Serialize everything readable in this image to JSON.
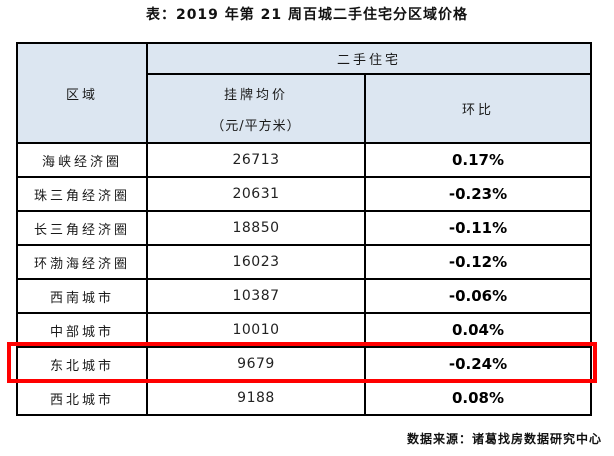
{
  "title": "表：2019 年第 21 周百城二手住宅分区域价格",
  "table": {
    "header": {
      "region": "区域",
      "group": "二手住宅",
      "price_line1": "挂牌均价",
      "price_line2": "（元/平方米）",
      "mom": "环比"
    },
    "rows": [
      {
        "region": "海峡经济圈",
        "price": "26713",
        "mom": "0.17%"
      },
      {
        "region": "珠三角经济圈",
        "price": "20631",
        "mom": "-0.23%"
      },
      {
        "region": "长三角经济圈",
        "price": "18850",
        "mom": "-0.11%"
      },
      {
        "region": "环渤海经济圈",
        "price": "16023",
        "mom": "-0.12%"
      },
      {
        "region": "西南城市",
        "price": "10387",
        "mom": "-0.06%"
      },
      {
        "region": "中部城市",
        "price": "10010",
        "mom": "0.04%"
      },
      {
        "region": "东北城市",
        "price": "9679",
        "mom": "-0.24%"
      },
      {
        "region": "西北城市",
        "price": "9188",
        "mom": "0.08%"
      }
    ],
    "highlighted_row_index": 6
  },
  "source": "数据来源：诸葛找房数据研究中心",
  "colors": {
    "header_bg": "#dce6f1",
    "grid_border": "#000000",
    "highlight_red": "#ff0000",
    "page_bg": "#ffffff"
  },
  "chart_data": {
    "type": "table",
    "title": "表：2019 年第 21 周百城二手住宅分区域价格",
    "group_header": "二手住宅",
    "columns": [
      "区域",
      "挂牌均价（元/平方米）",
      "环比"
    ],
    "rows": [
      [
        "海峡经济圈",
        26713,
        "0.17%"
      ],
      [
        "珠三角经济圈",
        20631,
        "-0.23%"
      ],
      [
        "长三角经济圈",
        18850,
        "-0.11%"
      ],
      [
        "环渤海经济圈",
        16023,
        "-0.12%"
      ],
      [
        "西南城市",
        10387,
        "-0.06%"
      ],
      [
        "中部城市",
        10010,
        "0.04%"
      ],
      [
        "东北城市",
        9679,
        "-0.24%"
      ],
      [
        "西北城市",
        9188,
        "0.08%"
      ]
    ],
    "highlighted_row": "东北城市",
    "source": "数据来源：诸葛找房数据研究中心"
  }
}
